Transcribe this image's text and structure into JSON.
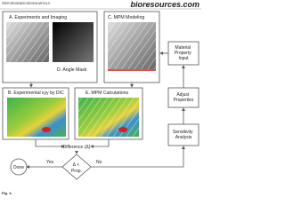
{
  "header": {
    "journal_tag": "PEER-REVIEWED REVIEW ARTICLE",
    "site": "bioresources.com"
  },
  "panels": {
    "a": "A. Experiments and Imaging",
    "d": "D. Angle Mask",
    "c": "C. MPM Modeling",
    "b": "B. Experimental εyy by DIC",
    "e": "E. MPM Calculations"
  },
  "nodes": {
    "material": [
      "Material",
      "Property",
      "Input"
    ],
    "adjust": [
      "Adjust",
      "Properties"
    ],
    "sensitivity": [
      "Sensitivity",
      "Analysis"
    ],
    "difference": "Difference (Δ)",
    "decision": [
      "Δ <",
      "Prop."
    ],
    "done": "Done"
  },
  "edges": {
    "yes": "Yes",
    "no": "No"
  },
  "caption": "Fig. 4."
}
